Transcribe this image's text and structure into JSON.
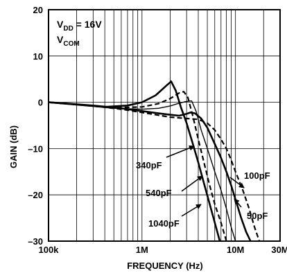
{
  "chart_data": {
    "type": "line",
    "xlabel": "FREQUENCY (Hz)",
    "ylabel": "GAIN (dB)",
    "x_scale": "log",
    "xlim": [
      100000,
      30000000
    ],
    "ylim": [
      -30,
      20
    ],
    "grid": true,
    "x_ticks": [
      {
        "value": 100000,
        "label": "100k"
      },
      {
        "value": 1000000,
        "label": "1M"
      },
      {
        "value": 10000000,
        "label": "10M"
      },
      {
        "value": 30000000,
        "label": "30M"
      }
    ],
    "y_ticks": [
      {
        "value": 20,
        "label": "20"
      },
      {
        "value": 10,
        "label": "10"
      },
      {
        "value": 0,
        "label": "0"
      },
      {
        "value": -10,
        "label": "–10"
      },
      {
        "value": -20,
        "label": "–20"
      },
      {
        "value": -30,
        "label": "–30"
      }
    ],
    "conditions": [
      {
        "main": "V",
        "sub": "DD",
        "rest": " = 16V"
      },
      {
        "main": "V",
        "sub": "COM",
        "rest": ""
      }
    ],
    "annotations": [
      {
        "text": "340pF",
        "x": 1300000,
        "y": -14
      },
      {
        "text": "540pF",
        "x": 1550000,
        "y": -20.2
      },
      {
        "text": "1040pF",
        "x": 1350000,
        "y": -26.2
      },
      {
        "text": "100pF",
        "x": 13500000,
        "y": -16.5
      },
      {
        "text": "50pF",
        "x": 14000000,
        "y": -25.3
      }
    ],
    "series": [
      {
        "style": "solid-thick",
        "points": [
          [
            100000,
            0
          ],
          [
            300000,
            -0.7
          ],
          [
            600000,
            -1.3
          ],
          [
            1000000,
            -1.9
          ],
          [
            1500000,
            -2.4
          ],
          [
            2000000,
            -2.7
          ],
          [
            2500000,
            -2.9
          ],
          [
            3000000,
            -2.5
          ],
          [
            3300000,
            -2.2
          ],
          [
            3700000,
            -2.4
          ],
          [
            4300000,
            -3.5
          ],
          [
            5000000,
            -5.5
          ],
          [
            6000000,
            -9
          ],
          [
            7000000,
            -12
          ],
          [
            8000000,
            -15
          ],
          [
            9000000,
            -18
          ],
          [
            10000000,
            -21
          ],
          [
            11500000,
            -25
          ],
          [
            13000000,
            -28
          ],
          [
            14500000,
            -30
          ]
        ]
      },
      {
        "style": "dashed",
        "points": [
          [
            100000,
            0
          ],
          [
            300000,
            -0.8
          ],
          [
            600000,
            -1.5
          ],
          [
            1000000,
            -2.2
          ],
          [
            1500000,
            -2.8
          ],
          [
            2000000,
            -3.2
          ],
          [
            3000000,
            -3.5
          ],
          [
            4000000,
            -3.7
          ],
          [
            5000000,
            -4.5
          ],
          [
            6000000,
            -6
          ],
          [
            7000000,
            -8
          ],
          [
            8000000,
            -10
          ],
          [
            9000000,
            -12.5
          ],
          [
            10000000,
            -15
          ],
          [
            12000000,
            -19
          ],
          [
            14000000,
            -23
          ],
          [
            16000000,
            -27
          ],
          [
            18000000,
            -30
          ]
        ]
      },
      {
        "style": "solid-thick",
        "points": [
          [
            100000,
            0
          ],
          [
            400000,
            -1
          ],
          [
            700000,
            -0.7
          ],
          [
            1000000,
            0
          ],
          [
            1400000,
            1.5
          ],
          [
            1800000,
            3.5
          ],
          [
            2050000,
            4.5
          ],
          [
            2300000,
            2.5
          ],
          [
            2600000,
            -1
          ],
          [
            3000000,
            -4.5
          ],
          [
            3500000,
            -9
          ],
          [
            4000000,
            -13
          ],
          [
            4600000,
            -17.5
          ],
          [
            5300000,
            -22
          ],
          [
            6000000,
            -26
          ],
          [
            6800000,
            -30
          ]
        ]
      },
      {
        "style": "dashed",
        "points": [
          [
            100000,
            0
          ],
          [
            500000,
            -1.2
          ],
          [
            1000000,
            -1
          ],
          [
            1500000,
            -0.3
          ],
          [
            2000000,
            0.8
          ],
          [
            2500000,
            2
          ],
          [
            2800000,
            2.3
          ],
          [
            3100000,
            1
          ],
          [
            3500000,
            -3
          ],
          [
            4000000,
            -8
          ],
          [
            4600000,
            -13
          ],
          [
            5300000,
            -18
          ],
          [
            6000000,
            -22
          ],
          [
            7000000,
            -26
          ],
          [
            8000000,
            -30
          ]
        ]
      },
      {
        "style": "solid-thin",
        "points": [
          [
            100000,
            0
          ],
          [
            500000,
            -1.3
          ],
          [
            1000000,
            -1.5
          ],
          [
            1500000,
            -1.3
          ],
          [
            2000000,
            -0.8
          ],
          [
            2500000,
            -0.2
          ],
          [
            3000000,
            0.2
          ],
          [
            3400000,
            0.3
          ],
          [
            3800000,
            -2
          ],
          [
            4300000,
            -6
          ],
          [
            5000000,
            -10
          ],
          [
            6000000,
            -15
          ],
          [
            7000000,
            -19
          ],
          [
            8000000,
            -23
          ],
          [
            9000000,
            -27
          ],
          [
            10000000,
            -30
          ]
        ]
      }
    ]
  }
}
